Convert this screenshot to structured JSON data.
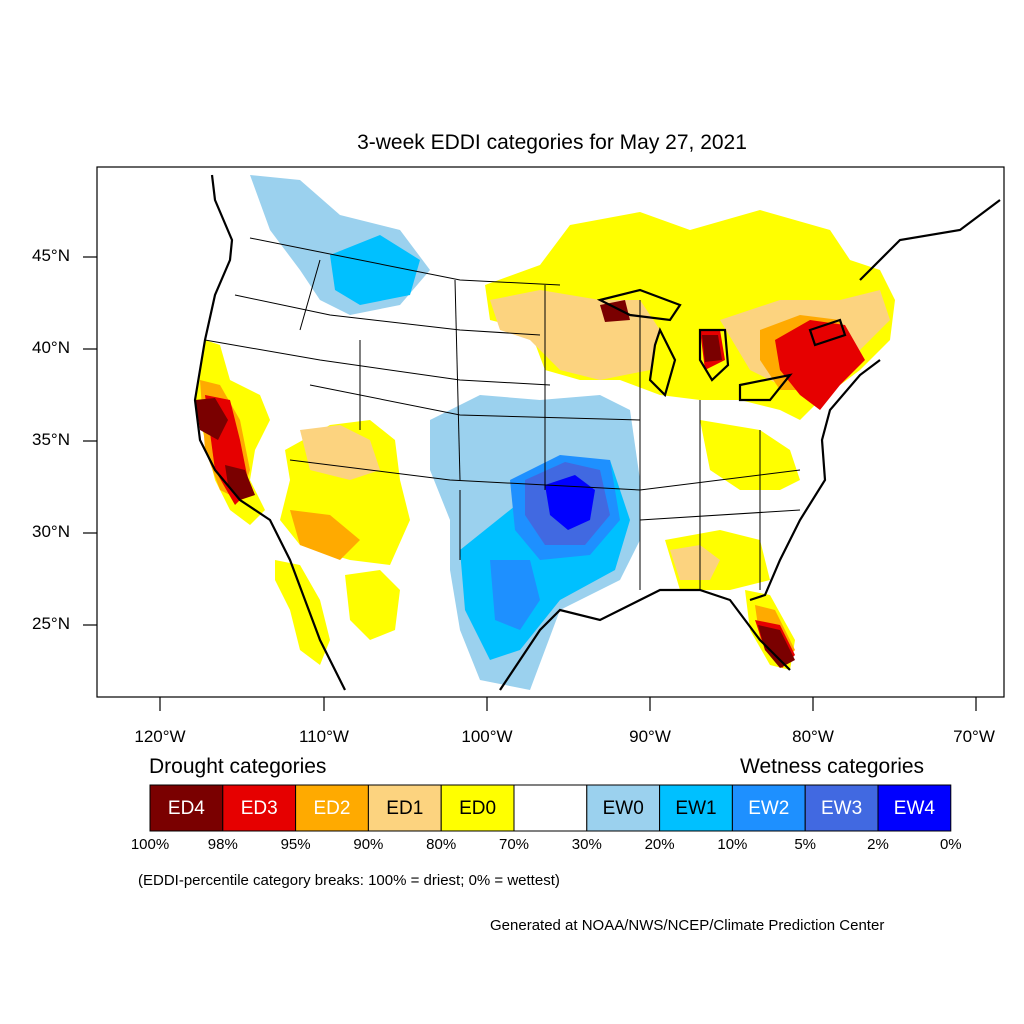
{
  "title": "3-week EDDI categories for May 27, 2021",
  "lat_labels": [
    "45°N",
    "40°N",
    "35°N",
    "30°N",
    "25°N"
  ],
  "lon_labels": [
    "120°W",
    "110°W",
    "100°W",
    "90°W",
    "80°W",
    "70°W"
  ],
  "legend": {
    "drought_heading": "Drought categories",
    "wetness_heading": "Wetness categories",
    "categories": [
      {
        "label": "ED4",
        "color": "#7a0000",
        "text_color": "#ffffff"
      },
      {
        "label": "ED3",
        "color": "#e60000",
        "text_color": "#ffffff"
      },
      {
        "label": "ED2",
        "color": "#ffaa00",
        "text_color": "#ffffff"
      },
      {
        "label": "ED1",
        "color": "#fcd37f",
        "text_color": "#000000"
      },
      {
        "label": "ED0",
        "color": "#ffff00",
        "text_color": "#000000"
      },
      {
        "label": "",
        "color": "#ffffff",
        "text_color": "#000000"
      },
      {
        "label": "EW0",
        "color": "#9bd1ee",
        "text_color": "#000000"
      },
      {
        "label": "EW1",
        "color": "#00c0ff",
        "text_color": "#000000"
      },
      {
        "label": "EW2",
        "color": "#1e90ff",
        "text_color": "#ffffff"
      },
      {
        "label": "EW3",
        "color": "#4169e1",
        "text_color": "#ffffff"
      },
      {
        "label": "EW4",
        "color": "#0000ff",
        "text_color": "#ffffff"
      }
    ],
    "percentiles": [
      "100%",
      "98%",
      "95%",
      "90%",
      "80%",
      "70%",
      "30%",
      "20%",
      "10%",
      "5%",
      "2%",
      "0%"
    ],
    "note": "(EDDI-percentile category breaks: 100% = driest; 0% = wettest)"
  },
  "credit": "Generated at NOAA/NWS/NCEP/Climate Prediction Center"
}
